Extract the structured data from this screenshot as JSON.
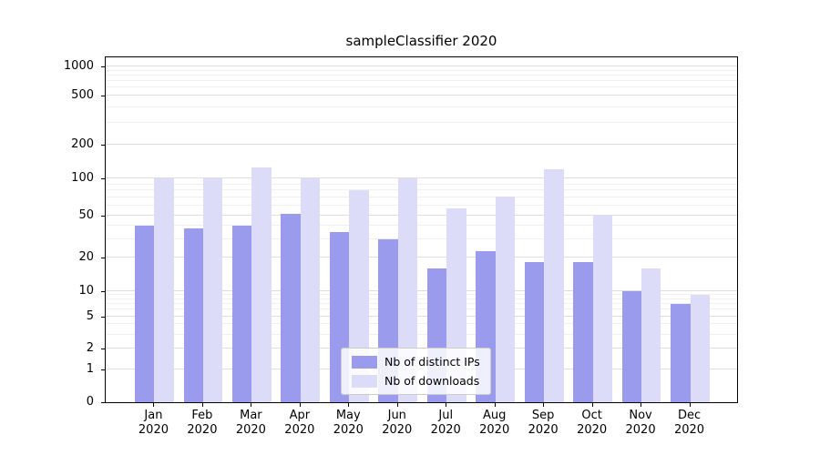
{
  "title": "sampleClassifier 2020",
  "chart_data": {
    "type": "bar",
    "title": "sampleClassifier 2020",
    "scale": "symlog",
    "grid": true,
    "legend_position": "lower center inside",
    "months": [
      "Jan",
      "Feb",
      "Mar",
      "Apr",
      "May",
      "Jun",
      "Jul",
      "Aug",
      "Sep",
      "Oct",
      "Nov",
      "Dec"
    ],
    "year_label": "2020",
    "y_ticks": [
      0,
      1,
      2,
      5,
      10,
      20,
      50,
      100,
      200,
      500,
      1000
    ],
    "ylim": [
      0,
      1200
    ],
    "series": [
      {
        "name": "Nb of distinct IPs",
        "color": "#9b9bee",
        "values": [
          40,
          38,
          40,
          52,
          35,
          30,
          16,
          23,
          18,
          18,
          10,
          7
        ]
      },
      {
        "name": "Nb of downloads",
        "color": "#dcdcf9",
        "values": [
          100,
          100,
          125,
          100,
          80,
          100,
          57,
          72,
          120,
          51,
          16,
          9
        ]
      }
    ]
  }
}
